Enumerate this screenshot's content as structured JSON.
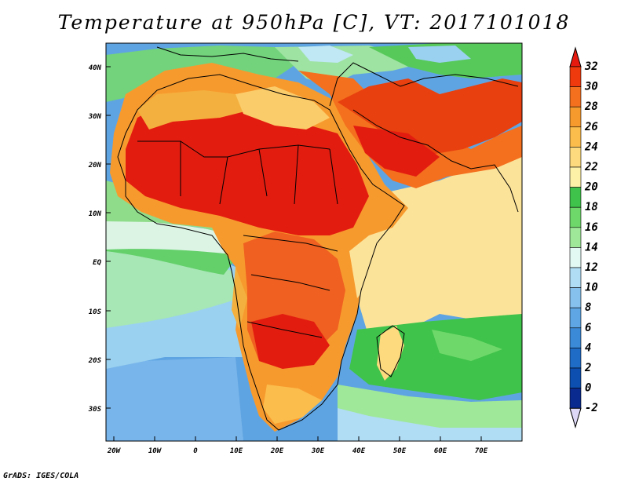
{
  "title": "Temperature at 950hPa [C], VT: 2017101018",
  "footer": "GrADS: IGES/COLA",
  "map": {
    "lat_labels": [
      "40N",
      "30N",
      "20N",
      "10N",
      "EQ",
      "10S",
      "20S",
      "30S"
    ],
    "lon_labels": [
      "20W",
      "10W",
      "0",
      "10E",
      "20E",
      "30E",
      "40E",
      "50E",
      "60E",
      "70E"
    ]
  },
  "colorbar": {
    "labels": [
      "32",
      "30",
      "28",
      "26",
      "24",
      "22",
      "20",
      "18",
      "16",
      "14",
      "12",
      "10",
      "8",
      "6",
      "4",
      "2",
      "0",
      "-2"
    ],
    "colors": [
      "#e61a0e",
      "#ef3a0e",
      "#f4701e",
      "#f79a2e",
      "#fbbd4c",
      "#fcda7d",
      "#fdf1a8",
      "#3fc34a",
      "#6fd86b",
      "#9fe899",
      "#e2f8f3",
      "#b0dcf4",
      "#86c0ec",
      "#5ea6e4",
      "#3b8ad8",
      "#1f6cc7",
      "#0d4fb0",
      "#0a2a90",
      "#070f60"
    ]
  }
}
